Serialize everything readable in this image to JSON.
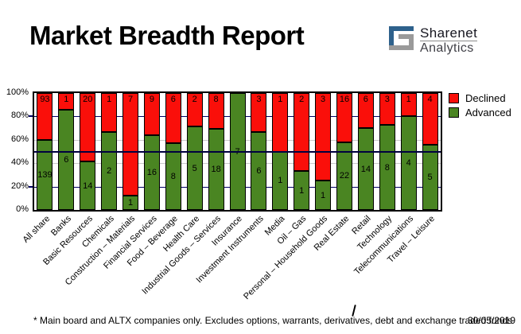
{
  "header": {
    "title": "Market Breadth Report",
    "logo": {
      "name": "Sharenet",
      "sub": "Analytics",
      "icon": "sharenet-logo-icon",
      "blue": "#2e618c",
      "gray": "#9a9a9a"
    }
  },
  "legend": {
    "items": [
      {
        "label": "Declined",
        "color": "#fa0f0a"
      },
      {
        "label": "Advanced",
        "color": "#4a8522"
      }
    ]
  },
  "chart_data": {
    "type": "bar",
    "stacked": true,
    "percent_of_total": true,
    "title": "Market Breadth Report",
    "categories": [
      "All share",
      "Banks",
      "Basic Resources",
      "Chemicals",
      "Construction – Materials",
      "Financial Services",
      "Food – Beverage",
      "Health Care",
      "Industrial Goods – Services",
      "Insurance",
      "Investment Instruments",
      "Media",
      "Oil – Gas",
      "Personal – Household Goods",
      "Real Estate",
      "Retail",
      "Technology",
      "Telecommunications",
      "Travel – Leisure"
    ],
    "series": [
      {
        "name": "Advanced",
        "color": "#4a8522",
        "values": [
          139,
          6,
          14,
          2,
          1,
          16,
          8,
          5,
          18,
          7,
          6,
          1,
          1,
          1,
          22,
          14,
          8,
          4,
          5
        ]
      },
      {
        "name": "Declined",
        "color": "#fa0f0a",
        "values": [
          93,
          1,
          20,
          1,
          7,
          9,
          6,
          2,
          8,
          0,
          3,
          1,
          2,
          3,
          16,
          6,
          3,
          1,
          4
        ]
      }
    ],
    "advanced_pct": [
      59.9,
      85.7,
      41.2,
      66.7,
      12.5,
      64.0,
      57.1,
      71.4,
      69.2,
      100.0,
      66.7,
      50.0,
      33.3,
      25.0,
      57.9,
      70.0,
      72.7,
      80.0,
      55.6
    ],
    "ylim": [
      0,
      100
    ],
    "yticks": [
      {
        "label": "100%",
        "pct": 100
      },
      {
        "label": "80%",
        "pct": 80
      },
      {
        "label": "60%",
        "pct": 60
      },
      {
        "label": "40%",
        "pct": 40
      },
      {
        "label": "20%",
        "pct": 20
      },
      {
        "label": "0%",
        "pct": 0
      }
    ],
    "gridlines": [
      {
        "pct": 80,
        "color": "#000066",
        "tick": true
      },
      {
        "pct": 60,
        "color": "#c9c9c9",
        "tick": false
      },
      {
        "pct": 40,
        "color": "#c9c9c9",
        "tick": false
      },
      {
        "pct": 20,
        "color": "#000066",
        "tick": true
      }
    ],
    "reference_line_pct": 50,
    "reference_line_color": "#000040",
    "legend_position": "top-right"
  },
  "footer": {
    "note": "* Main board and ALTX companies only. Excludes options, warrants, derivatives, debt and exchange traded funds",
    "date": "30/05/2019"
  }
}
